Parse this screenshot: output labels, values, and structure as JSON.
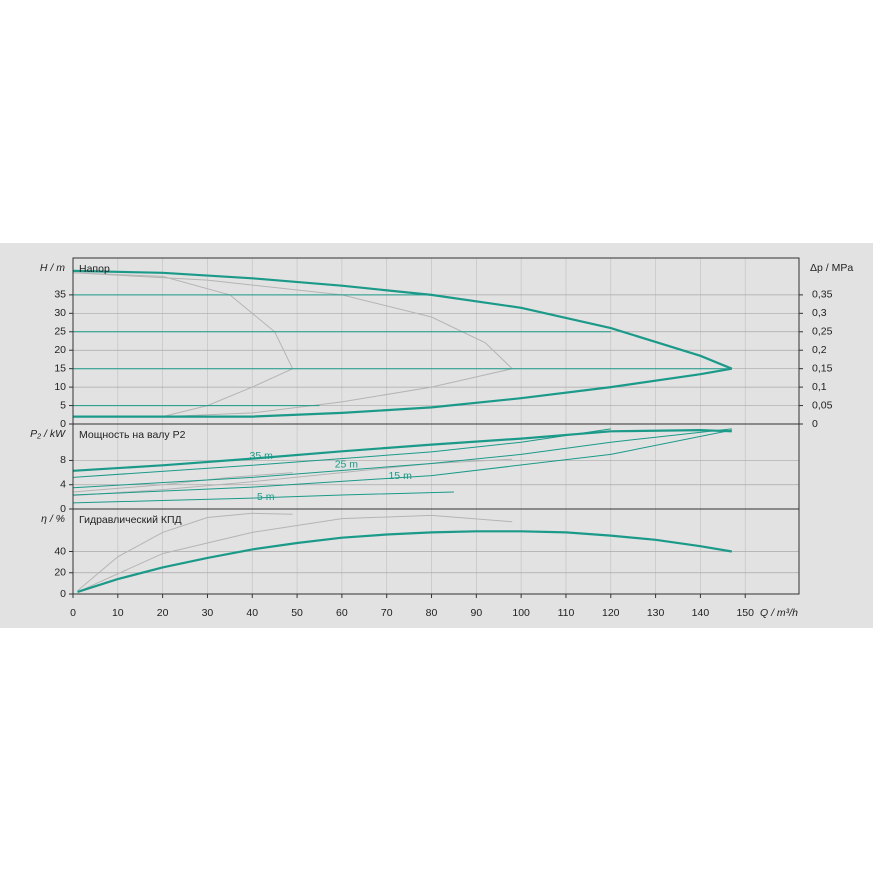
{
  "chart_data": [
    {
      "type": "line",
      "title": "Напор",
      "ylabel": "H / m",
      "y2label": "Δp / MPa",
      "xlim": [
        0,
        162
      ],
      "ylim": [
        0,
        45
      ],
      "yticks": [
        0,
        5,
        10,
        15,
        20,
        25,
        30,
        35
      ],
      "y2lim": [
        0,
        0.45
      ],
      "y2ticks": [
        0,
        {
          "value": 0.05,
          "label": "0,05"
        },
        {
          "value": 0.1,
          "label": "0,1"
        },
        {
          "value": 0.15,
          "label": "0,15"
        },
        {
          "value": 0.2,
          "label": "0,2"
        },
        {
          "value": 0.25,
          "label": "0,25"
        },
        {
          "value": 0.3,
          "label": "0,3"
        },
        {
          "value": 0.35,
          "label": "0,35"
        }
      ],
      "grid": true,
      "series": [
        {
          "color": "#b4b4b4",
          "linewidth": 1,
          "x": [
            0,
            20,
            35,
            45,
            49,
            40,
            30,
            20
          ],
          "values": [
            41,
            40,
            35,
            25,
            15,
            10,
            5,
            2
          ]
        },
        {
          "color": "#b4b4b4",
          "linewidth": 1,
          "x": [
            0,
            30,
            60,
            80,
            92,
            98,
            80,
            60,
            40,
            20
          ],
          "values": [
            41,
            39,
            35,
            29,
            22,
            15,
            10,
            6,
            3,
            2
          ]
        },
        {
          "color": "#1b9a89",
          "linewidth": 1,
          "x": [
            0,
            80
          ],
          "values": [
            35,
            35
          ]
        },
        {
          "color": "#1b9a89",
          "linewidth": 1,
          "x": [
            0,
            120
          ],
          "values": [
            25,
            25
          ]
        },
        {
          "color": "#1b9a89",
          "linewidth": 1,
          "x": [
            0,
            147
          ],
          "values": [
            15,
            15
          ]
        },
        {
          "color": "#1b9a89",
          "linewidth": 1,
          "x": [
            0,
            55
          ],
          "values": [
            5,
            5
          ]
        },
        {
          "color": "#1b9a89",
          "linewidth": 2.2,
          "x": [
            0,
            20,
            40,
            60,
            80,
            100,
            120,
            140,
            147
          ],
          "values": [
            41.5,
            41,
            39.5,
            37.5,
            35,
            31.5,
            26,
            18.5,
            15
          ]
        },
        {
          "color": "#1b9a89",
          "linewidth": 2.2,
          "x": [
            0,
            20,
            40,
            60,
            80,
            100,
            120,
            140,
            147
          ],
          "values": [
            2,
            2,
            2,
            3,
            4.5,
            7,
            10,
            13.5,
            15
          ]
        }
      ]
    },
    {
      "type": "line",
      "title": "Мощность на валу P2",
      "ylabel": "P₂ / kW",
      "xlim": [
        0,
        162
      ],
      "ylim": [
        0,
        14
      ],
      "yticks": [
        0,
        4,
        8
      ],
      "grid": true,
      "annotations": [
        {
          "text": "35 m",
          "x": 42,
          "y": 8.7
        },
        {
          "text": "25 m",
          "x": 61,
          "y": 7.3
        },
        {
          "text": "15 m",
          "x": 73,
          "y": 5.4
        },
        {
          "text": "5 m",
          "x": 43,
          "y": 1.9
        }
      ],
      "series": [
        {
          "color": "#b4b4b4",
          "linewidth": 1,
          "x": [
            0,
            20,
            40,
            60,
            80,
            98
          ],
          "values": [
            2.2,
            3.2,
            4.5,
            6,
            7.5,
            8.2
          ]
        },
        {
          "color": "#b4b4b4",
          "linewidth": 1,
          "x": [
            0,
            20,
            35,
            49
          ],
          "values": [
            2.8,
            4,
            5.2,
            6
          ]
        },
        {
          "color": "#1b9a89",
          "linewidth": 1,
          "x": [
            0,
            40,
            80,
            100,
            120
          ],
          "values": [
            5.2,
            7.2,
            9.4,
            11,
            13.2
          ]
        },
        {
          "color": "#1b9a89",
          "linewidth": 1,
          "x": [
            0,
            40,
            80,
            100,
            120,
            147
          ],
          "values": [
            3.5,
            5.2,
            7.5,
            9,
            11,
            13.2
          ]
        },
        {
          "color": "#1b9a89",
          "linewidth": 1,
          "x": [
            0,
            40,
            80,
            120,
            147
          ],
          "values": [
            2.3,
            3.6,
            5.5,
            9,
            13
          ]
        },
        {
          "color": "#1b9a89",
          "linewidth": 1,
          "x": [
            0,
            20,
            40,
            60,
            85
          ],
          "values": [
            1,
            1.4,
            1.8,
            2.3,
            2.8
          ]
        },
        {
          "color": "#1b9a89",
          "linewidth": 2.2,
          "x": [
            0,
            20,
            40,
            60,
            80,
            100,
            120,
            140,
            147
          ],
          "values": [
            6.3,
            7.2,
            8.3,
            9.5,
            10.6,
            11.6,
            12.8,
            13,
            12.8
          ]
        }
      ]
    },
    {
      "type": "line",
      "title": "Гидравлический КПД",
      "ylabel": "η / %",
      "xlabel": "Q / m³/h",
      "xlim": [
        0,
        162
      ],
      "ylim": [
        0,
        80
      ],
      "yticks": [
        0,
        20,
        40
      ],
      "xticks": [
        0,
        10,
        20,
        30,
        40,
        50,
        60,
        70,
        80,
        90,
        100,
        110,
        120,
        130,
        140,
        150
      ],
      "grid": true,
      "series": [
        {
          "color": "#b4b4b4",
          "linewidth": 1,
          "x": [
            1,
            10,
            20,
            30,
            40,
            49
          ],
          "values": [
            3,
            35,
            58,
            72,
            76,
            75
          ]
        },
        {
          "color": "#b4b4b4",
          "linewidth": 1,
          "x": [
            1,
            20,
            40,
            60,
            80,
            98
          ],
          "values": [
            2,
            38,
            58,
            71,
            74,
            68
          ]
        },
        {
          "color": "#1b9a89",
          "linewidth": 2.2,
          "x": [
            1,
            10,
            20,
            30,
            40,
            50,
            60,
            70,
            80,
            90,
            100,
            110,
            120,
            130,
            140,
            147
          ],
          "values": [
            2,
            14,
            25,
            34,
            42,
            48,
            53,
            56,
            58,
            59,
            59,
            58,
            55,
            51,
            45,
            40
          ]
        }
      ]
    }
  ]
}
